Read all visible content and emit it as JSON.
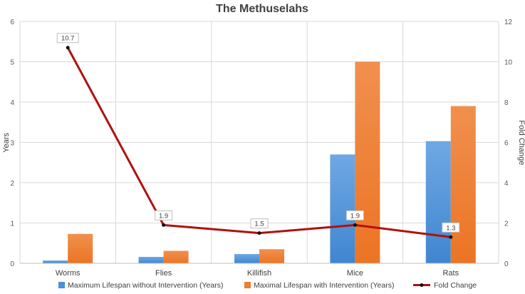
{
  "chart_data": {
    "type": "bar",
    "title": "The Methuselahs",
    "categories": [
      "Worms",
      "Flies",
      "Killifish",
      "Mice",
      "Rats"
    ],
    "ylabel": "Years",
    "y2label": "Fold Change",
    "ylim": [
      0,
      6
    ],
    "yticks": [
      0,
      1,
      2,
      3,
      4,
      5,
      6
    ],
    "y2lim": [
      0,
      12
    ],
    "y2ticks": [
      0,
      2,
      4,
      6,
      8,
      10,
      12
    ],
    "grid": true,
    "legend_position": "bottom",
    "series": [
      {
        "name": "Maximum Lifespan without Intervention (Years)",
        "type": "bar",
        "axis": "left",
        "color": "#4A90D9",
        "values": [
          0.07,
          0.16,
          0.23,
          2.7,
          3.03
        ]
      },
      {
        "name": "Maximal Lifespan with Intervention (Years)",
        "type": "bar",
        "axis": "left",
        "color": "#ED7D31",
        "values": [
          0.73,
          0.31,
          0.35,
          5.0,
          3.9
        ]
      },
      {
        "name": "Fold Change",
        "type": "line",
        "axis": "right",
        "color": "#B01010",
        "values": [
          10.7,
          1.9,
          1.5,
          1.9,
          1.3
        ],
        "labels": [
          "10.7",
          "1.9",
          "1.5",
          "1.9",
          "1.3"
        ]
      }
    ]
  }
}
